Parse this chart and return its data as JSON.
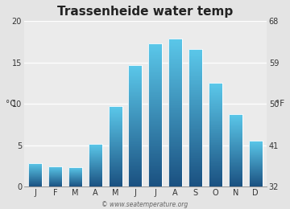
{
  "title": "Trassenheide water temp",
  "months": [
    "J",
    "F",
    "M",
    "A",
    "M",
    "J",
    "J",
    "A",
    "S",
    "O",
    "N",
    "D"
  ],
  "values": [
    2.9,
    2.5,
    2.4,
    5.2,
    9.7,
    14.7,
    17.3,
    17.9,
    16.6,
    12.5,
    8.8,
    5.6
  ],
  "ylim_c": [
    0,
    20
  ],
  "yticks_c": [
    0,
    5,
    10,
    15,
    20
  ],
  "yticks_f": [
    32,
    41,
    50,
    59,
    68
  ],
  "ylabel_left": "°C",
  "ylabel_right": "°F",
  "bar_color_top": "#5bc8ea",
  "bar_color_bottom": "#1a5080",
  "background_color": "#e4e4e4",
  "plot_bg_color": "#ebebeb",
  "grid_color": "#ffffff",
  "watermark": "© www.seatemperature.org",
  "title_fontsize": 11,
  "tick_fontsize": 7,
  "label_fontsize": 7.5,
  "bar_width": 0.68,
  "gradient_steps": 200
}
